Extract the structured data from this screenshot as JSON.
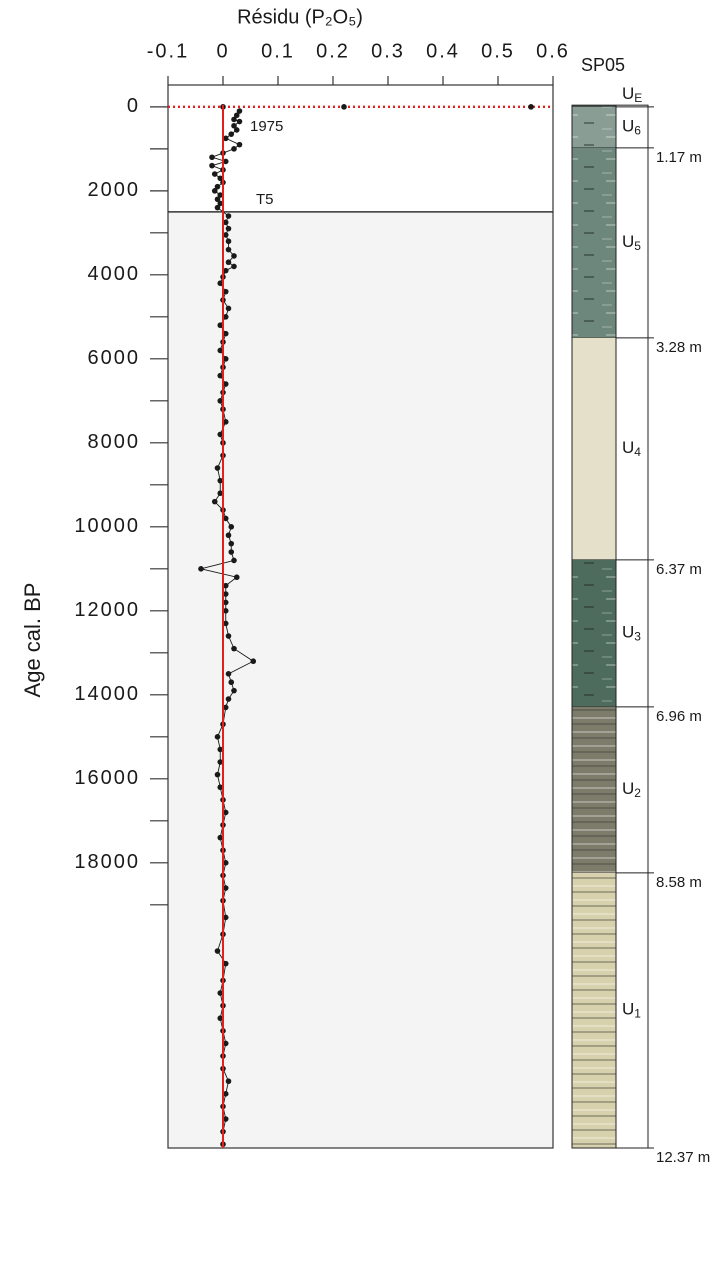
{
  "chart_data": [
    {
      "type": "profile",
      "title": "Résidu (P₂O₅)",
      "y_label": "Age cal. BP",
      "xlim": [
        -0.1,
        0.6
      ],
      "xticks": [
        -0.1,
        0,
        0.1,
        0.2,
        0.3,
        0.4,
        0.5,
        0.6
      ],
      "ylim": [
        -520,
        24790
      ],
      "y_inverted": true,
      "yticks": [
        0,
        2000,
        4000,
        6000,
        8000,
        10000,
        12000,
        14000,
        16000,
        18000
      ],
      "yminor_ticks": [
        1000,
        3000,
        5000,
        7000,
        9000,
        11000,
        13000,
        15000,
        17000,
        19000
      ],
      "vline": {
        "x": 0,
        "color": "#e3201b"
      },
      "reference_lines": [
        {
          "label": "1975",
          "y": 0,
          "color": "#e3201b",
          "style": "dotted",
          "shade_below": false
        },
        {
          "label": "T5",
          "y": 2500,
          "color": "#333333",
          "style": "solid",
          "shade_below": true
        }
      ],
      "shade_color": "#f4f4f4",
      "series": [
        {
          "color": "#1a1a1a",
          "line": true,
          "y": [
            100,
            200,
            300,
            350,
            450,
            550,
            650,
            750,
            900,
            1000,
            1100,
            1200,
            1300,
            1400,
            1500,
            1600,
            1700,
            1800,
            1900,
            2000,
            2100,
            2200,
            2300,
            2400,
            2600,
            2750,
            2900,
            3050,
            3200,
            3400,
            3550,
            3700,
            3800,
            3900,
            4050,
            4200,
            4400,
            4600,
            4800,
            5000,
            5200,
            5400,
            5600,
            5800,
            6000,
            6200,
            6400,
            6600,
            6800,
            7000,
            7200,
            7500,
            7800,
            8000,
            8300,
            8600,
            8900,
            9200,
            9400,
            9600,
            9800,
            10000,
            10200,
            10400,
            10600,
            10800,
            11000,
            11200,
            11400,
            11600,
            11800,
            12000,
            12300,
            12600,
            12900,
            13200,
            13500,
            13700,
            13900,
            14100,
            14300,
            14700,
            15000,
            15300,
            15600,
            15900,
            16200,
            16500,
            16800,
            17100,
            17400,
            17700,
            18000,
            18300,
            18600,
            18900,
            19300,
            19700,
            20100,
            20400,
            20800,
            21100,
            21400,
            21700,
            22000,
            22300,
            22600,
            22900,
            23200,
            23500,
            23800,
            24100,
            24400,
            24700
          ],
          "values": [
            0.03,
            0.025,
            0.02,
            0.03,
            0.02,
            0.025,
            0.015,
            0.005,
            0.03,
            0.02,
            0.0,
            -0.02,
            0.005,
            -0.02,
            0.0,
            -0.015,
            -0.005,
            0.0,
            -0.01,
            -0.015,
            -0.005,
            -0.01,
            -0.005,
            -0.01,
            0.01,
            0.005,
            0.01,
            0.005,
            0.01,
            0.01,
            0.02,
            0.01,
            0.02,
            0.005,
            0.0,
            -0.005,
            0.005,
            0.0,
            0.01,
            0.005,
            -0.005,
            0.005,
            0.0,
            -0.005,
            0.005,
            0.0,
            -0.005,
            0.005,
            0.0,
            -0.005,
            0.0,
            0.005,
            -0.005,
            0.0,
            0.0,
            -0.01,
            -0.005,
            -0.005,
            -0.015,
            0.0,
            0.005,
            0.015,
            0.01,
            0.015,
            0.015,
            0.02,
            -0.04,
            0.025,
            0.005,
            0.005,
            0.005,
            0.005,
            0.005,
            0.01,
            0.02,
            0.055,
            0.01,
            0.015,
            0.02,
            0.01,
            0.005,
            0.0,
            -0.01,
            -0.005,
            -0.005,
            -0.01,
            -0.005,
            0.0,
            0.005,
            0.0,
            -0.005,
            0.0,
            0.005,
            0.0,
            0.005,
            0.0,
            0.005,
            0.0,
            -0.01,
            0.005,
            0.0,
            -0.005,
            0.0,
            -0.005,
            0.0,
            0.005,
            0.0,
            0.0,
            0.01,
            0.005,
            0.0,
            0.005,
            0.0,
            0.0
          ]
        },
        {
          "color": "#1a1a1a",
          "line": false,
          "y": [
            0,
            0,
            0
          ],
          "values": [
            0.0,
            0.22,
            0.56
          ]
        }
      ]
    },
    {
      "type": "column",
      "title": "SP05",
      "units": [
        {
          "name": "U",
          "sub": "E",
          "ages": [
            -40,
            0
          ],
          "color": "#55675e",
          "texture": "none"
        },
        {
          "name": "U",
          "sub": "6",
          "ages": [
            0,
            976
          ],
          "color": "#8a9d95",
          "texture": "dash",
          "depth": "1.17 m"
        },
        {
          "name": "U",
          "sub": "5",
          "ages": [
            976,
            5500
          ],
          "color": "#6e877d",
          "texture": "dash",
          "depth": "3.28 m"
        },
        {
          "name": "U",
          "sub": "4",
          "ages": [
            5500,
            10786
          ],
          "color": "#e5e0c9",
          "texture": "none",
          "depth": "6.37 m"
        },
        {
          "name": "U",
          "sub": "3",
          "ages": [
            10786,
            14286
          ],
          "color": "#4e6c5e",
          "texture": "dash",
          "depth": "6.96 m"
        },
        {
          "name": "U",
          "sub": "2",
          "ages": [
            14286,
            18238
          ],
          "color": "#7d7c6b",
          "texture": "stripe",
          "depth": "8.58 m"
        },
        {
          "name": "U",
          "sub": "1",
          "ages": [
            18238,
            24790
          ],
          "color": "#d8d1ad",
          "texture": "stripe",
          "depth": "12.37 m"
        }
      ]
    }
  ]
}
